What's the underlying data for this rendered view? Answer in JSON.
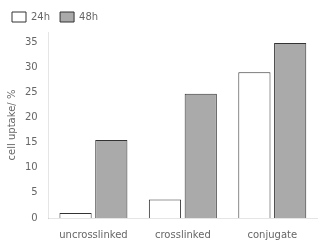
{
  "chart_data": {
    "type": "bar",
    "categories": [
      "uncrosslinked",
      "crosslinked",
      "conjugate"
    ],
    "series": [
      {
        "name": "24h",
        "color": "#ffffff",
        "values": [
          1.0,
          3.7,
          29.0
        ]
      },
      {
        "name": "48h",
        "color": "#aaaaaa",
        "values": [
          15.5,
          24.7,
          34.8
        ]
      }
    ],
    "ylabel": "cell uptake/ %",
    "ylim": [
      0,
      37
    ],
    "yticks": [
      0,
      5,
      10,
      15,
      20,
      25,
      30,
      35
    ],
    "grid": false,
    "legend": "upper left"
  }
}
